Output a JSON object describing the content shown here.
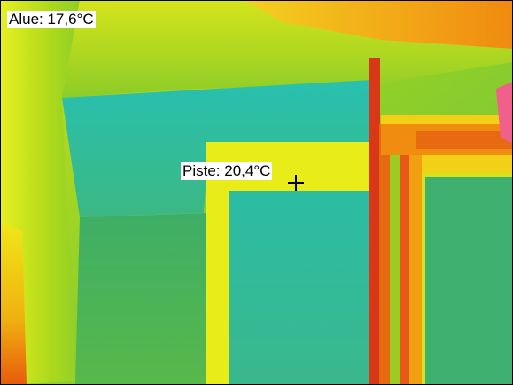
{
  "thermal_image": {
    "area_label": "Alue: 17,6°C",
    "spot_label": "Piste: 20,4°C",
    "crosshair_icon": "crosshair-icon",
    "palette": {
      "cold": "#22b8a6",
      "cool": "#39c08a",
      "mid": "#9bd21a",
      "warm": "#f0ec10",
      "hot": "#f0a010",
      "hotter": "#e85f0c",
      "hottest": "#d82a10",
      "pink": "#f0608a",
      "border": "#000000",
      "label_background": "#ffffff",
      "label_text": "#000000"
    }
  }
}
